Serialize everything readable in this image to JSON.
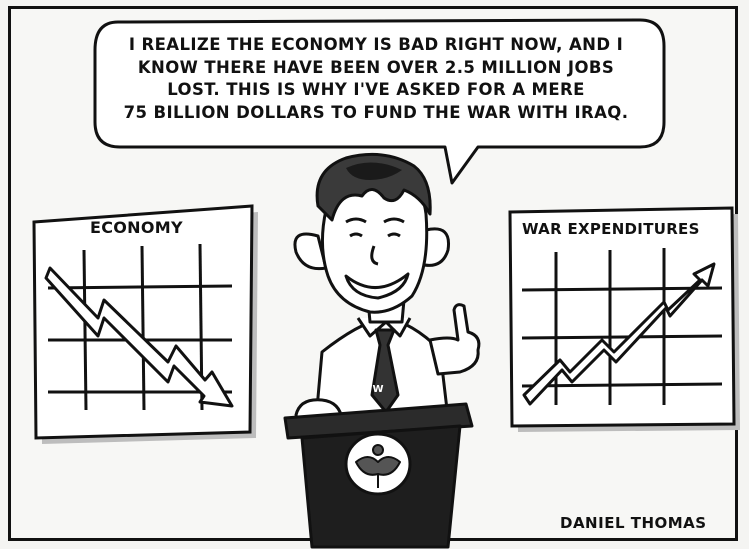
{
  "speech_bubble": {
    "lines": [
      "I REALIZE THE ECONOMY IS BAD RIGHT NOW, AND I",
      "KNOW THERE HAVE BEEN OVER 2.5 MILLION JOBS",
      "LOST. THIS IS WHY I'VE ASKED FOR A MERE",
      "75 BILLION DOLLARS TO FUND THE WAR WITH IRAQ."
    ]
  },
  "left_board": {
    "title": "ECONOMY"
  },
  "right_board": {
    "title": "WAR EXPENDITURES"
  },
  "tie_letter": "W",
  "signature": "DANIEL THOMAS",
  "colors": {
    "ink": "#111111",
    "paper": "#f7f7f5",
    "shade": "#bdbdbd"
  }
}
